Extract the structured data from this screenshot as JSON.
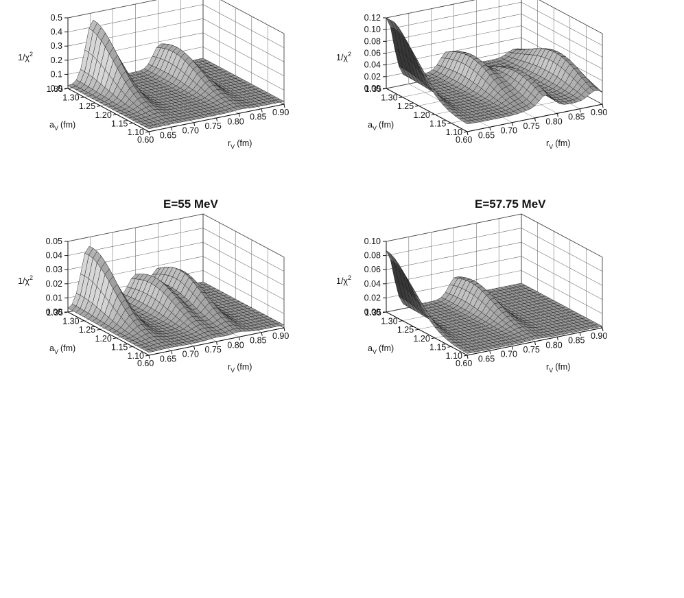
{
  "figure": {
    "panel_titles": [
      "",
      "",
      "E=55 MeV",
      "E=57.75 MeV"
    ]
  },
  "chart_data": [
    {
      "type": "surface3d",
      "title": "",
      "xlabel": "r_V (fm)",
      "xlabel_main": "r",
      "xlabel_sub": "V",
      "xlabel_unit": "(fm)",
      "ylabel": "a_V (fm)",
      "ylabel_main": "a",
      "ylabel_sub": "V",
      "ylabel_unit": "(fm)",
      "zlabel": "1/χ²",
      "zlabel_main": "1/χ",
      "zlabel_sup": "2",
      "x_ticks": [
        "0.60",
        "0.65",
        "0.70",
        "0.75",
        "0.80",
        "0.85",
        "0.90"
      ],
      "y_ticks": [
        "1.10",
        "1.15",
        "1.20",
        "1.25",
        "1.30",
        "1.35"
      ],
      "z_ticks": [
        "0.0",
        "0.1",
        "0.2",
        "0.3",
        "0.4",
        "0.5"
      ],
      "xlim": [
        0.6,
        0.9
      ],
      "ylim": [
        1.1,
        1.35
      ],
      "zlim": [
        0,
        0.5
      ],
      "peaks": [
        {
          "r": 0.655,
          "a": 1.35,
          "height": 0.43
        },
        {
          "r": 0.805,
          "a": 1.3,
          "height": 0.2
        }
      ],
      "baseline": 0.02,
      "grid": true
    },
    {
      "type": "surface3d",
      "title": "",
      "xlabel": "r_V (fm)",
      "xlabel_main": "r",
      "xlabel_sub": "V",
      "xlabel_unit": "(fm)",
      "ylabel": "a_V (fm)",
      "ylabel_main": "a",
      "ylabel_sub": "V",
      "ylabel_unit": "(fm)",
      "zlabel": "1/χ²",
      "zlabel_main": "1/χ",
      "zlabel_sup": "2",
      "x_ticks": [
        "0.60",
        "0.65",
        "0.70",
        "0.75",
        "0.80",
        "0.85",
        "0.90"
      ],
      "y_ticks": [
        "1.10",
        "1.15",
        "1.20",
        "1.25",
        "1.30",
        "1.35"
      ],
      "z_ticks": [
        "0.00",
        "0.02",
        "0.04",
        "0.06",
        "0.08",
        "0.10",
        "0.12"
      ],
      "xlim": [
        0.6,
        0.9
      ],
      "ylim": [
        1.1,
        1.35
      ],
      "zlim": [
        0,
        0.12
      ],
      "peaks": [
        {
          "r": 0.6,
          "a": 1.34,
          "height": 0.11
        },
        {
          "r": 0.735,
          "a": 1.28,
          "height": 0.045
        },
        {
          "r": 0.775,
          "a": 1.18,
          "height": 0.04
        },
        {
          "r": 0.885,
          "a": 1.22,
          "height": 0.045
        }
      ],
      "baseline": 0.012,
      "grid": true
    },
    {
      "type": "surface3d",
      "title": "E=55 MeV",
      "xlabel": "r_V (fm)",
      "xlabel_main": "r",
      "xlabel_sub": "V",
      "xlabel_unit": "(fm)",
      "ylabel": "a_V (fm)",
      "ylabel_main": "a",
      "ylabel_sub": "V",
      "ylabel_unit": "(fm)",
      "zlabel": "1/χ²",
      "zlabel_main": "1/χ",
      "zlabel_sup": "2",
      "x_ticks": [
        "0.60",
        "0.65",
        "0.70",
        "0.75",
        "0.80",
        "0.85",
        "0.90"
      ],
      "y_ticks": [
        "1.10",
        "1.15",
        "1.20",
        "1.25",
        "1.30",
        "1.35"
      ],
      "z_ticks": [
        "0.00",
        "0.01",
        "0.02",
        "0.03",
        "0.04",
        "0.05"
      ],
      "xlim": [
        0.6,
        0.9
      ],
      "ylim": [
        1.1,
        1.35
      ],
      "zlim": [
        0,
        0.05
      ],
      "peaks": [
        {
          "r": 0.645,
          "a": 1.34,
          "height": 0.042
        },
        {
          "r": 0.75,
          "a": 1.29,
          "height": 0.02
        },
        {
          "r": 0.8,
          "a": 1.28,
          "height": 0.024
        }
      ],
      "baseline": 0.002,
      "grid": true
    },
    {
      "type": "surface3d",
      "title": "E=57.75 MeV",
      "xlabel": "r_V (fm)",
      "xlabel_main": "r",
      "xlabel_sub": "V",
      "xlabel_unit": "(fm)",
      "ylabel": "a_V (fm)",
      "ylabel_main": "a",
      "ylabel_sub": "V",
      "ylabel_unit": "(fm)",
      "zlabel": "1/χ²",
      "zlabel_main": "1/χ",
      "zlabel_sup": "2",
      "x_ticks": [
        "0.60",
        "0.65",
        "0.70",
        "0.75",
        "0.80",
        "0.85",
        "0.90"
      ],
      "y_ticks": [
        "1.10",
        "1.15",
        "1.20",
        "1.25",
        "1.30",
        "1.35"
      ],
      "z_ticks": [
        "0.00",
        "0.02",
        "0.04",
        "0.06",
        "0.08",
        "0.10"
      ],
      "xlim": [
        0.6,
        0.9
      ],
      "ylim": [
        1.1,
        1.35
      ],
      "zlim": [
        0,
        0.1
      ],
      "peaks": [
        {
          "r": 0.6,
          "a": 1.35,
          "height": 0.085
        },
        {
          "r": 0.755,
          "a": 1.3,
          "height": 0.035
        }
      ],
      "baseline": 0.002,
      "grid": true
    }
  ]
}
